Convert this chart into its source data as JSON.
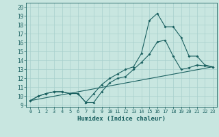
{
  "xlabel": "Humidex (Indice chaleur)",
  "bg_color": "#c8e6e0",
  "grid_color": "#a8d0cc",
  "line_color": "#1a6060",
  "xlim": [
    -0.5,
    23.5
  ],
  "ylim": [
    8.8,
    20.5
  ],
  "xticks": [
    0,
    1,
    2,
    3,
    4,
    5,
    6,
    7,
    8,
    9,
    10,
    11,
    12,
    13,
    14,
    15,
    16,
    17,
    18,
    19,
    20,
    21,
    22,
    23
  ],
  "yticks": [
    9,
    10,
    11,
    12,
    13,
    14,
    15,
    16,
    17,
    18,
    19,
    20
  ],
  "series1_x": [
    0,
    1,
    2,
    3,
    4,
    5,
    6,
    7,
    8,
    9,
    10,
    11,
    12,
    13,
    14,
    15,
    16,
    17,
    18,
    19,
    20,
    21,
    22,
    23
  ],
  "series1_y": [
    9.5,
    10.0,
    10.3,
    10.5,
    10.5,
    10.3,
    10.3,
    9.3,
    10.3,
    11.3,
    12.0,
    12.5,
    13.0,
    13.3,
    14.8,
    18.5,
    19.3,
    17.8,
    17.8,
    16.6,
    14.5,
    14.5,
    13.5,
    13.3
  ],
  "series2_x": [
    0,
    1,
    2,
    3,
    4,
    5,
    6,
    7,
    8,
    9,
    10,
    11,
    12,
    13,
    14,
    15,
    16,
    17,
    18,
    19,
    20,
    21,
    22,
    23
  ],
  "series2_y": [
    9.5,
    10.0,
    10.3,
    10.5,
    10.5,
    10.3,
    10.3,
    9.3,
    9.3,
    10.5,
    11.5,
    12.0,
    12.2,
    13.0,
    13.8,
    14.7,
    16.1,
    16.3,
    14.5,
    13.0,
    13.2,
    13.5,
    13.4,
    13.3
  ],
  "series3_x": [
    0,
    23
  ],
  "series3_y": [
    9.5,
    13.3
  ]
}
